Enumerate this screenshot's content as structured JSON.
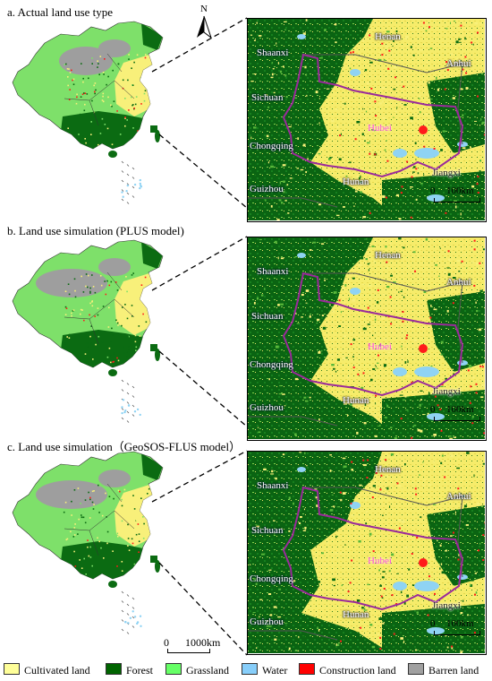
{
  "panels": [
    {
      "title": "a. Actual land use type",
      "variant": "a"
    },
    {
      "title": "b. Land use simulation (PLUS model)",
      "variant": "b"
    },
    {
      "title": "c. Land use simulation（GeoSOS-FLUS model）",
      "variant": "c"
    }
  ],
  "north_label": "N",
  "inset_labels": {
    "shaanxi": "Shaanxi",
    "henan_top": "Henan",
    "anhui": "Anhui",
    "sichuan": "Sichuan",
    "hubei": "Hubei",
    "chongqing": "Chongqing",
    "guizhou": "Guizhou",
    "hunan": "Hunan",
    "jiangxi": "Jiangxi"
  },
  "inset_scale": {
    "zero": "0",
    "distance": "100km"
  },
  "main_scale": {
    "zero": "0",
    "distance": "1000km"
  },
  "legend": [
    {
      "label": "Cultivated land",
      "color": "#ffff99"
    },
    {
      "label": "Forest",
      "color": "#006400"
    },
    {
      "label": "Grassland",
      "color": "#66ff66"
    },
    {
      "label": "Water",
      "color": "#87cefa"
    },
    {
      "label": "Construction land",
      "color": "#ff0000"
    },
    {
      "label": "Barren land",
      "color": "#a0a0a0"
    }
  ],
  "colors": {
    "cultivated": "#f8f07a",
    "forest": "#0b6b12",
    "grassland": "#7ee06a",
    "water": "#8fd3f4",
    "construction": "#ff1a1a",
    "barren": "#9e9e9e",
    "boundary": "#9a2a9a"
  }
}
